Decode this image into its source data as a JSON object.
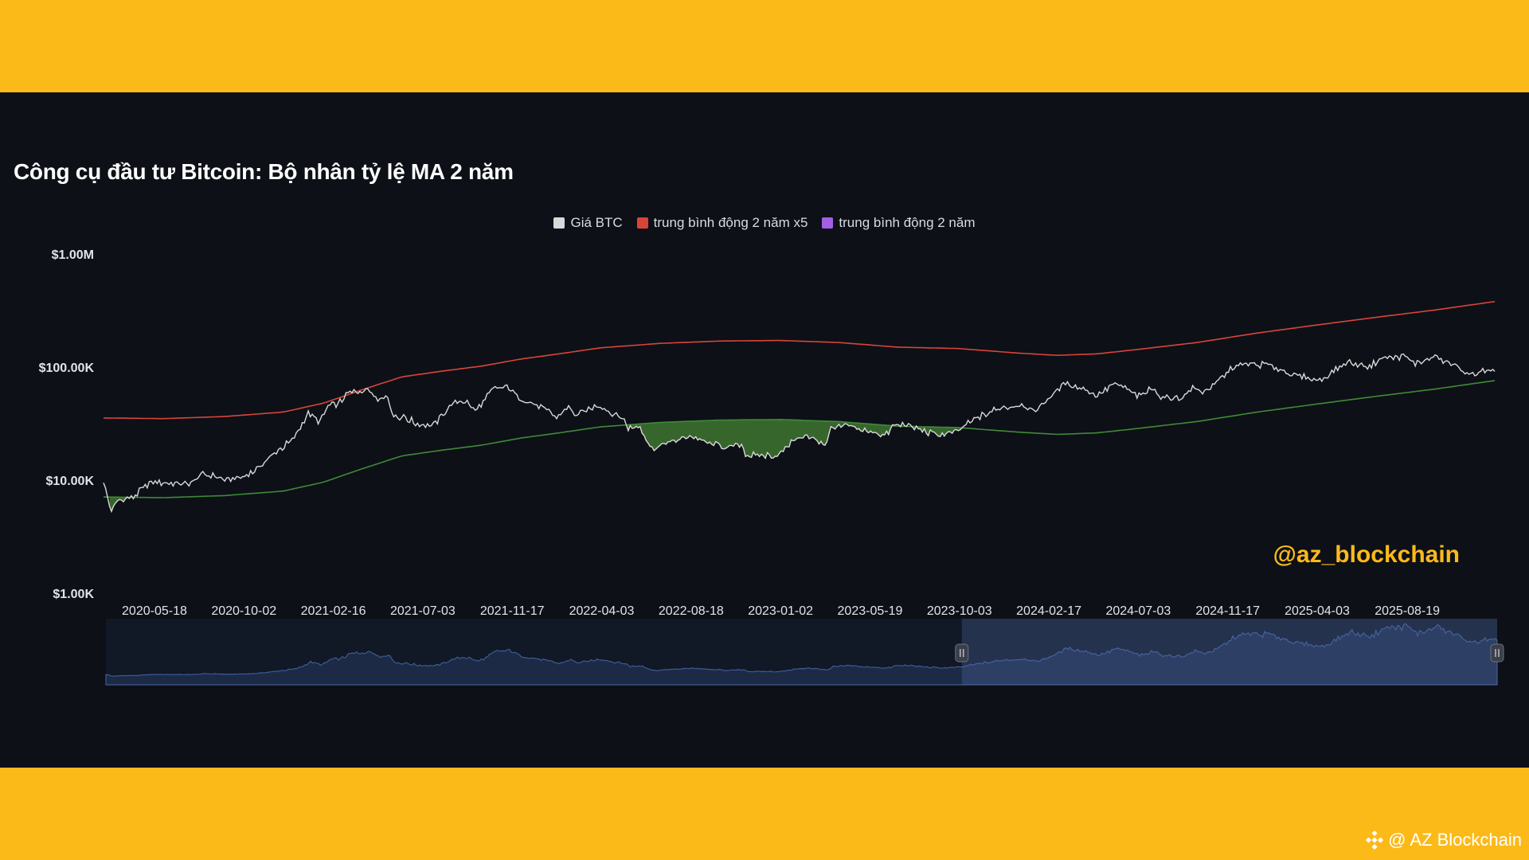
{
  "chart_data": {
    "type": "line",
    "title": "Công cụ đầu tư Bitcoin: Bộ nhân tỷ lệ MA 2 năm",
    "y_scale": "log",
    "ylim": [
      1000,
      1000000
    ],
    "y_ticks": [
      {
        "value": 1000000,
        "label": "$1.00M"
      },
      {
        "value": 100000,
        "label": "$100.00K"
      },
      {
        "value": 10000,
        "label": "$10.00K"
      },
      {
        "value": 1000,
        "label": "$1.00K"
      }
    ],
    "xlim": [
      "2020-03-01",
      "2025-12-31"
    ],
    "x_ticks": [
      "2020-05-18",
      "2020-10-02",
      "2021-02-16",
      "2021-07-03",
      "2021-11-17",
      "2022-04-03",
      "2022-08-18",
      "2023-01-02",
      "2023-05-19",
      "2023-10-03",
      "2024-02-17",
      "2024-07-03",
      "2024-11-17",
      "2025-04-03",
      "2025-08-19"
    ],
    "legend_position": "top-center",
    "grid": false,
    "series": [
      {
        "name": "Giá BTC",
        "color": "#d9d9d9",
        "points": [
          [
            "2020-03-01",
            9500
          ],
          [
            "2020-03-12",
            5400
          ],
          [
            "2020-03-25",
            6700
          ],
          [
            "2020-04-15",
            7000
          ],
          [
            "2020-05-10",
            9500
          ],
          [
            "2020-06-15",
            9400
          ],
          [
            "2020-07-10",
            9200
          ],
          [
            "2020-08-01",
            11500
          ],
          [
            "2020-09-05",
            10200
          ],
          [
            "2020-10-02",
            10600
          ],
          [
            "2020-10-25",
            13000
          ],
          [
            "2020-11-25",
            18500
          ],
          [
            "2020-12-20",
            24000
          ],
          [
            "2021-01-08",
            40000
          ],
          [
            "2021-01-25",
            32000
          ],
          [
            "2021-02-10",
            46000
          ],
          [
            "2021-02-25",
            48000
          ],
          [
            "2021-03-14",
            60000
          ],
          [
            "2021-04-14",
            63500
          ],
          [
            "2021-04-25",
            51000
          ],
          [
            "2021-05-08",
            58000
          ],
          [
            "2021-05-19",
            37000
          ],
          [
            "2021-06-05",
            36000
          ],
          [
            "2021-06-22",
            32000
          ],
          [
            "2021-07-20",
            30500
          ],
          [
            "2021-08-15",
            47000
          ],
          [
            "2021-09-07",
            51000
          ],
          [
            "2021-09-21",
            41000
          ],
          [
            "2021-10-20",
            64000
          ],
          [
            "2021-11-10",
            67500
          ],
          [
            "2021-11-26",
            55000
          ],
          [
            "2021-12-15",
            48000
          ],
          [
            "2022-01-05",
            43000
          ],
          [
            "2022-01-24",
            36000
          ],
          [
            "2022-02-10",
            44000
          ],
          [
            "2022-02-24",
            37000
          ],
          [
            "2022-03-28",
            47000
          ],
          [
            "2022-04-15",
            40000
          ],
          [
            "2022-05-08",
            34000
          ],
          [
            "2022-05-12",
            28500
          ],
          [
            "2022-06-01",
            30000
          ],
          [
            "2022-06-18",
            19000
          ],
          [
            "2022-07-10",
            21000
          ],
          [
            "2022-08-14",
            24500
          ],
          [
            "2022-09-10",
            21500
          ],
          [
            "2022-10-15",
            19200
          ],
          [
            "2022-11-05",
            21200
          ],
          [
            "2022-11-09",
            16500
          ],
          [
            "2022-12-30",
            16500
          ],
          [
            "2023-01-20",
            22500
          ],
          [
            "2023-02-20",
            24500
          ],
          [
            "2023-03-10",
            20000
          ],
          [
            "2023-03-20",
            28000
          ],
          [
            "2023-04-14",
            30500
          ],
          [
            "2023-05-10",
            27500
          ],
          [
            "2023-06-15",
            25000
          ],
          [
            "2023-06-23",
            30500
          ],
          [
            "2023-07-13",
            31000
          ],
          [
            "2023-08-17",
            26000
          ],
          [
            "2023-09-11",
            25000
          ],
          [
            "2023-10-03",
            27500
          ],
          [
            "2023-10-25",
            34500
          ],
          [
            "2023-12-05",
            44000
          ],
          [
            "2024-01-10",
            46500
          ],
          [
            "2024-01-23",
            39500
          ],
          [
            "2024-02-15",
            52000
          ],
          [
            "2024-03-14",
            73000
          ],
          [
            "2024-04-15",
            63000
          ],
          [
            "2024-05-01",
            57000
          ],
          [
            "2024-05-25",
            69000
          ],
          [
            "2024-06-10",
            67000
          ],
          [
            "2024-07-05",
            54500
          ],
          [
            "2024-07-28",
            68000
          ],
          [
            "2024-08-05",
            53000
          ],
          [
            "2024-09-06",
            53500
          ],
          [
            "2024-09-27",
            66000
          ],
          [
            "2024-10-10",
            60000
          ],
          [
            "2024-10-30",
            72000
          ],
          [
            "2024-11-22",
            98000
          ],
          [
            "2024-12-17",
            106000
          ],
          [
            "2025-01-20",
            104000
          ],
          [
            "2025-02-28",
            84000
          ],
          [
            "2025-04-08",
            76500
          ],
          [
            "2025-05-10",
            103000
          ],
          [
            "2025-05-22",
            111000
          ],
          [
            "2025-06-22",
            101000
          ],
          [
            "2025-07-14",
            121000
          ],
          [
            "2025-08-14",
            123000
          ],
          [
            "2025-09-01",
            108000
          ],
          [
            "2025-10-06",
            124000
          ],
          [
            "2025-10-12",
            111000
          ],
          [
            "2025-11-05",
            101000
          ],
          [
            "2025-11-21",
            84000
          ],
          [
            "2025-12-05",
            90000
          ],
          [
            "2025-12-28",
            91500
          ]
        ]
      },
      {
        "name": "trung bình động 2 năm x5",
        "color": "#d9443a",
        "points": [
          [
            "2020-03-01",
            35500
          ],
          [
            "2020-06-01",
            35000
          ],
          [
            "2020-09-01",
            36500
          ],
          [
            "2020-12-01",
            40000
          ],
          [
            "2021-02-01",
            48000
          ],
          [
            "2021-04-01",
            63000
          ],
          [
            "2021-06-01",
            82000
          ],
          [
            "2021-08-01",
            92000
          ],
          [
            "2021-10-01",
            102000
          ],
          [
            "2021-12-01",
            118000
          ],
          [
            "2022-02-01",
            132000
          ],
          [
            "2022-04-01",
            148000
          ],
          [
            "2022-07-01",
            162000
          ],
          [
            "2022-10-01",
            170000
          ],
          [
            "2023-01-01",
            172000
          ],
          [
            "2023-04-01",
            165000
          ],
          [
            "2023-07-01",
            150000
          ],
          [
            "2023-10-01",
            146000
          ],
          [
            "2024-01-01",
            133000
          ],
          [
            "2024-03-01",
            127000
          ],
          [
            "2024-05-01",
            131000
          ],
          [
            "2024-07-01",
            143000
          ],
          [
            "2024-10-01",
            165000
          ],
          [
            "2025-01-01",
            200000
          ],
          [
            "2025-04-01",
            235000
          ],
          [
            "2025-07-01",
            275000
          ],
          [
            "2025-10-01",
            320000
          ],
          [
            "2025-12-31",
            380000
          ]
        ]
      },
      {
        "name": "trung bình động 2 năm",
        "color": "#a45ee5",
        "display_color": "#3f8a37",
        "points": [
          [
            "2020-03-01",
            7100
          ],
          [
            "2020-06-01",
            7000
          ],
          [
            "2020-09-01",
            7300
          ],
          [
            "2020-12-01",
            8000
          ],
          [
            "2021-02-01",
            9600
          ],
          [
            "2021-04-01",
            12600
          ],
          [
            "2021-06-01",
            16400
          ],
          [
            "2021-08-01",
            18400
          ],
          [
            "2021-10-01",
            20400
          ],
          [
            "2021-12-01",
            23600
          ],
          [
            "2022-02-01",
            26400
          ],
          [
            "2022-04-01",
            29600
          ],
          [
            "2022-07-01",
            32400
          ],
          [
            "2022-10-01",
            34000
          ],
          [
            "2023-01-01",
            34400
          ],
          [
            "2023-04-01",
            33000
          ],
          [
            "2023-07-01",
            30000
          ],
          [
            "2023-10-01",
            29200
          ],
          [
            "2024-01-01",
            26600
          ],
          [
            "2024-03-01",
            25400
          ],
          [
            "2024-05-01",
            26200
          ],
          [
            "2024-07-01",
            28600
          ],
          [
            "2024-10-01",
            33000
          ],
          [
            "2025-01-01",
            40000
          ],
          [
            "2025-04-01",
            47000
          ],
          [
            "2025-07-01",
            55000
          ],
          [
            "2025-10-01",
            64000
          ],
          [
            "2025-12-31",
            76000
          ]
        ]
      }
    ],
    "navigator_selection": [
      "2023-10-03",
      "2025-12-31"
    ]
  },
  "watermark": "@az_blockchain",
  "credit": "@ AZ Blockchain"
}
